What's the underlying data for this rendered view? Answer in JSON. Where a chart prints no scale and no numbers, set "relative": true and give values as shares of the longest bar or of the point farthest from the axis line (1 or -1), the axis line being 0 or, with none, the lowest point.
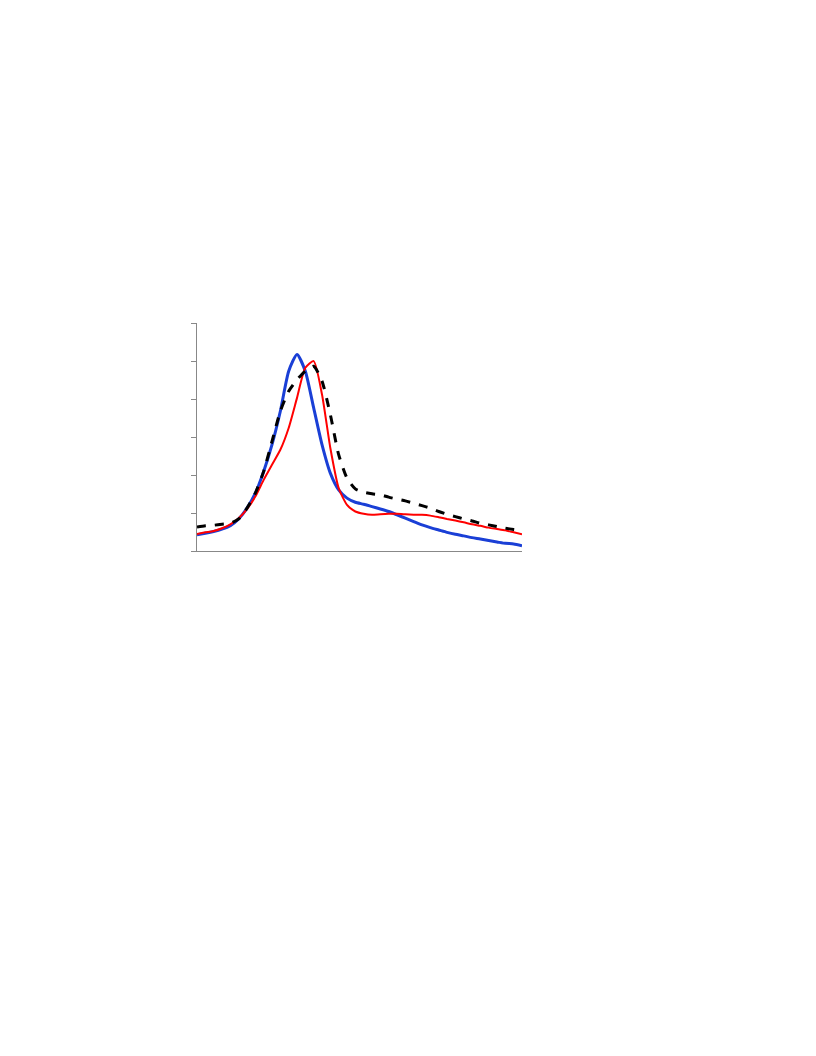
{
  "chart_data": {
    "type": "line",
    "relative": true,
    "marker": "none",
    "categories": [
      null,
      null,
      null,
      null,
      null,
      null,
      null,
      null,
      null,
      null,
      null,
      null,
      null,
      null,
      null,
      null,
      null,
      null,
      null,
      null,
      null,
      null,
      null,
      null,
      null,
      null,
      null,
      null,
      null,
      null,
      null,
      null,
      null,
      null,
      null,
      null,
      null,
      null,
      null,
      null
    ],
    "series": [
      {
        "color": "#1a3fd6",
        "line_style": "solid",
        "values": [
          0.082,
          0.09,
          0.099,
          0.111,
          0.129,
          0.163,
          0.218,
          0.294,
          0.405,
          0.541,
          0.711,
          0.915,
          1.0,
          0.915,
          0.728,
          0.541,
          0.396,
          0.311,
          0.269,
          0.248,
          0.238,
          0.226,
          0.214,
          0.201,
          0.184,
          0.167,
          0.15,
          0.133,
          0.119,
          0.107,
          0.095,
          0.085,
          0.077,
          0.068,
          0.061,
          0.053,
          0.046,
          0.039,
          0.036,
          0.027
        ]
      },
      {
        "color": "#ff0000",
        "line_style": "solid",
        "values": [
          0.087,
          0.095,
          0.102,
          0.116,
          0.136,
          0.167,
          0.213,
          0.277,
          0.362,
          0.439,
          0.515,
          0.626,
          0.779,
          0.932,
          0.966,
          0.796,
          0.524,
          0.32,
          0.235,
          0.201,
          0.189,
          0.184,
          0.187,
          0.189,
          0.189,
          0.187,
          0.185,
          0.184,
          0.18,
          0.172,
          0.163,
          0.155,
          0.146,
          0.136,
          0.128,
          0.119,
          0.112,
          0.105,
          0.095,
          0.085
        ]
      },
      {
        "color": "#000000",
        "line_style": "dashed",
        "values": [
          0.122,
          0.128,
          0.131,
          0.136,
          0.141,
          0.163,
          0.218,
          0.294,
          0.405,
          0.558,
          0.711,
          0.813,
          0.872,
          0.915,
          0.94,
          0.864,
          0.694,
          0.49,
          0.371,
          0.316,
          0.299,
          0.291,
          0.286,
          0.274,
          0.264,
          0.255,
          0.243,
          0.231,
          0.218,
          0.201,
          0.187,
          0.175,
          0.163,
          0.153,
          0.141,
          0.133,
          0.124,
          0.116,
          0.109,
          0.102
        ]
      }
    ]
  }
}
